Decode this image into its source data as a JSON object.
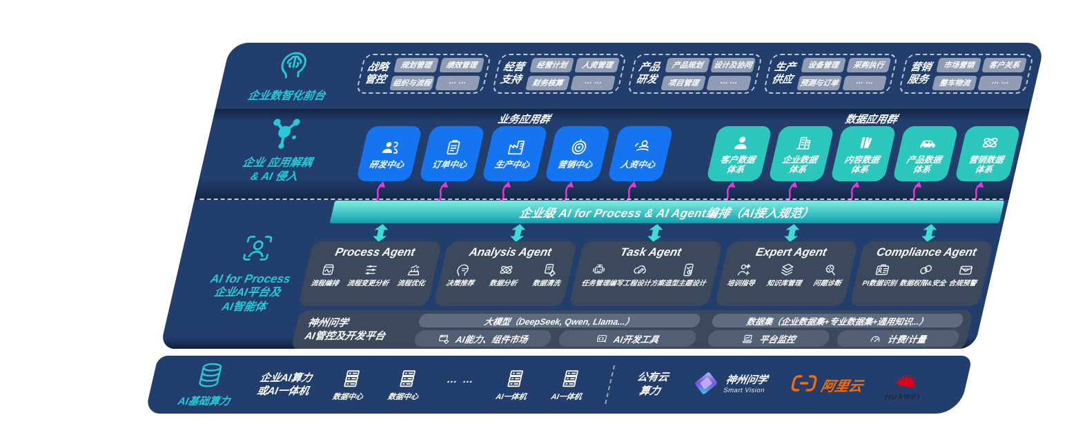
{
  "colors": {
    "navy": "#223e6d",
    "panel": "#3d495c",
    "bar": "#5f6b80",
    "cell": "#525f74",
    "blue": "#1574f0",
    "teal_box": "#2bc7bd",
    "teal": "#27c9d9",
    "magenta": "#e53ad8",
    "band_top": "#7eeede",
    "band_bottom": "#0f9fb0",
    "orange": "#ff6a00",
    "huawei_red": "#e60012"
  },
  "front_office": {
    "caption": "企业数智化前台",
    "icon": "brain-icon",
    "groups": [
      {
        "title": "战略管控",
        "chips": [
          "规划管理",
          "绩效管理",
          "组织与流程",
          "… …"
        ]
      },
      {
        "title": "经营支持",
        "chips": [
          "经营计划",
          "人资管理",
          "财务核算",
          "… …"
        ]
      },
      {
        "title": "产品研发",
        "chips": [
          "产品规划",
          "设计及协同",
          "项目管理",
          "… …"
        ]
      },
      {
        "title": "生产供应",
        "chips": [
          "设备管理",
          "采购执行",
          "预测与订单",
          "… …"
        ]
      },
      {
        "title": "营销服务",
        "chips": [
          "市场营销",
          "客户关系",
          "整车物流",
          "… …"
        ]
      }
    ]
  },
  "app_layer": {
    "caption": [
      "企业 应用解耦",
      "& AI 侵入"
    ],
    "icon": "molecule-icon",
    "biz_header": "业务应用群",
    "data_header": "数据应用群",
    "biz_boxes": [
      {
        "label": "研发中心",
        "icon": "team-icon"
      },
      {
        "label": "订单中心",
        "icon": "clipboard-icon"
      },
      {
        "label": "生产中心",
        "icon": "factory-icon"
      },
      {
        "label": "营销中心",
        "icon": "target-icon"
      },
      {
        "label": "人资中心",
        "icon": "person-wave-icon"
      }
    ],
    "data_boxes": [
      {
        "label": "客户数据体系",
        "icon": "user-icon"
      },
      {
        "label": "企业数据体系",
        "icon": "building-icon"
      },
      {
        "label": "内容数据体系",
        "icon": "books-icon"
      },
      {
        "label": "产品数据体系",
        "icon": "car-icon"
      },
      {
        "label": "营销数据体系",
        "icon": "atom-icon"
      }
    ]
  },
  "band": {
    "label": "企业级 AI for Process & AI Agent编排（AI接入规范）"
  },
  "agents": {
    "caption": [
      "AI for Process",
      "企业AI平台及",
      "AI智能体"
    ],
    "icon": "person-focus-icon",
    "boxes": [
      {
        "title": "Process Agent",
        "items": [
          {
            "label": "流程编排",
            "icon": "doc-wave-icon"
          },
          {
            "label": "流程变更分析",
            "icon": "sliders-icon"
          },
          {
            "label": "流程优化",
            "icon": "machine-icon"
          }
        ]
      },
      {
        "title": "Analysis Agent",
        "items": [
          {
            "label": "决策推荐",
            "icon": "head-chat-icon"
          },
          {
            "label": "数据分析",
            "icon": "atom-icon"
          },
          {
            "label": "数据清洗",
            "icon": "doc-gear-icon"
          }
        ]
      },
      {
        "title": "Task Agent",
        "items": [
          {
            "label": "任务管理",
            "icon": "robot-icon"
          },
          {
            "label": "编写工程设计方案",
            "icon": "cloud-pen-icon"
          },
          {
            "label": "造型主题设计",
            "icon": "tablet-check-icon"
          }
        ]
      },
      {
        "title": "Expert Agent",
        "items": [
          {
            "label": "培训指导",
            "icon": "person-spark-icon"
          },
          {
            "label": "知识库管理",
            "icon": "stack-icon"
          },
          {
            "label": "问题诊断",
            "icon": "search-gear-icon"
          }
        ]
      },
      {
        "title": "Compliance Agent",
        "items": [
          {
            "label": "PI数据识别",
            "icon": "id-card-icon"
          },
          {
            "label": "数据权限&安全",
            "icon": "link-icon"
          },
          {
            "label": "合规预警",
            "icon": "mail-icon"
          }
        ]
      }
    ]
  },
  "platform": {
    "label": [
      "神州问学",
      "AI管控及开发平台"
    ],
    "left": {
      "top_bar": "大模型（DeepSeek, Qwen, Llama...）",
      "cells": [
        {
          "label": "AI能力、组件市场",
          "icon": "window-gear-icon"
        },
        {
          "label": "AI开发工具",
          "icon": "code-tool-icon"
        }
      ]
    },
    "right": {
      "top_bar": "数据集（企业数据集+专业数据集+通用知识...）",
      "cells": [
        {
          "label": "平台监控",
          "icon": "laptop-chart-icon"
        },
        {
          "label": "计费/计量",
          "icon": "gauge-icon"
        }
      ]
    }
  },
  "infra": {
    "caption": "AI基础算力",
    "icon": "database-icon",
    "compute": [
      "企业AI算力",
      "或AI一体机"
    ],
    "servers": [
      {
        "label": "数据中心",
        "icon": "server-icon"
      },
      {
        "label": "数据中心",
        "icon": "server-icon"
      },
      {
        "label": "… …",
        "icon": "dots"
      },
      {
        "label": "AI一体机",
        "icon": "server-icon"
      },
      {
        "label": "AI一体机",
        "icon": "server-icon"
      }
    ],
    "public_cloud": [
      "公有云",
      "算力"
    ],
    "partners": {
      "smartvision": {
        "name": "神州问学",
        "sub": "Smart Vision",
        "icon": "smartvision-logo"
      },
      "alicloud": {
        "name": "阿里云",
        "icon": "alicloud-logo"
      },
      "huawei": {
        "name": "HUAWEI",
        "icon": "huawei-logo"
      }
    }
  }
}
